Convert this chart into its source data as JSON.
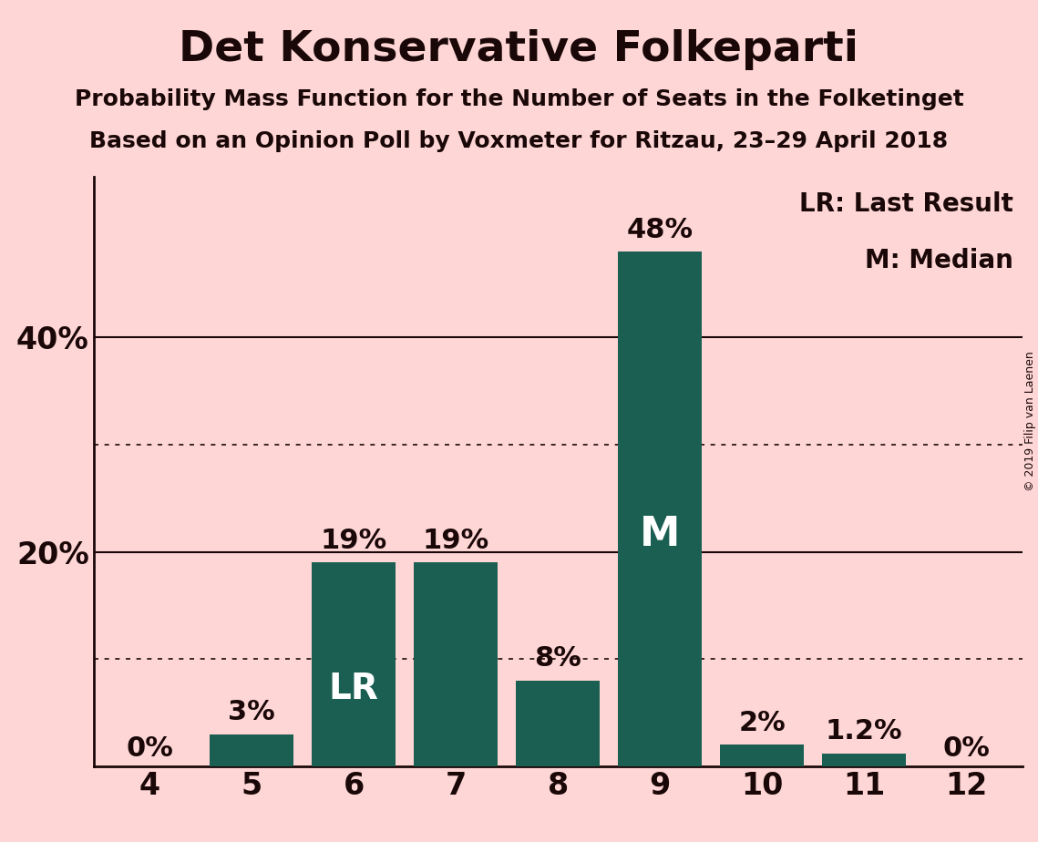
{
  "title": "Det Konservative Folkeparti",
  "subtitle1": "Probability Mass Function for the Number of Seats in the Folketinget",
  "subtitle2": "Based on an Opinion Poll by Voxmeter for Ritzau, 23–29 April 2018",
  "copyright": "© 2019 Filip van Laenen",
  "categories": [
    4,
    5,
    6,
    7,
    8,
    9,
    10,
    11,
    12
  ],
  "values": [
    0.0,
    3.0,
    19.0,
    19.0,
    8.0,
    48.0,
    2.0,
    1.2,
    0.0
  ],
  "bar_color": "#1a5f52",
  "background_color": "#ffd6d6",
  "bar_labels": [
    "0%",
    "3%",
    "19%",
    "19%",
    "8%",
    "48%",
    "2%",
    "1.2%",
    "0%"
  ],
  "lr_bar_cat": 6,
  "median_bar_cat": 9,
  "legend_text1": "LR: Last Result",
  "legend_text2": "M: Median",
  "solid_yticks": [
    20,
    40
  ],
  "dotted_yticks": [
    10,
    30
  ],
  "ylim": [
    0,
    55
  ],
  "title_fontsize": 34,
  "subtitle_fontsize": 18,
  "tick_fontsize": 24,
  "bar_label_fontsize": 22,
  "inside_label_fontsize": 28,
  "legend_fontsize": 20,
  "ytick_display": [
    20,
    40
  ],
  "dark_color": "#1a0808",
  "spine_color": "#1a0808"
}
